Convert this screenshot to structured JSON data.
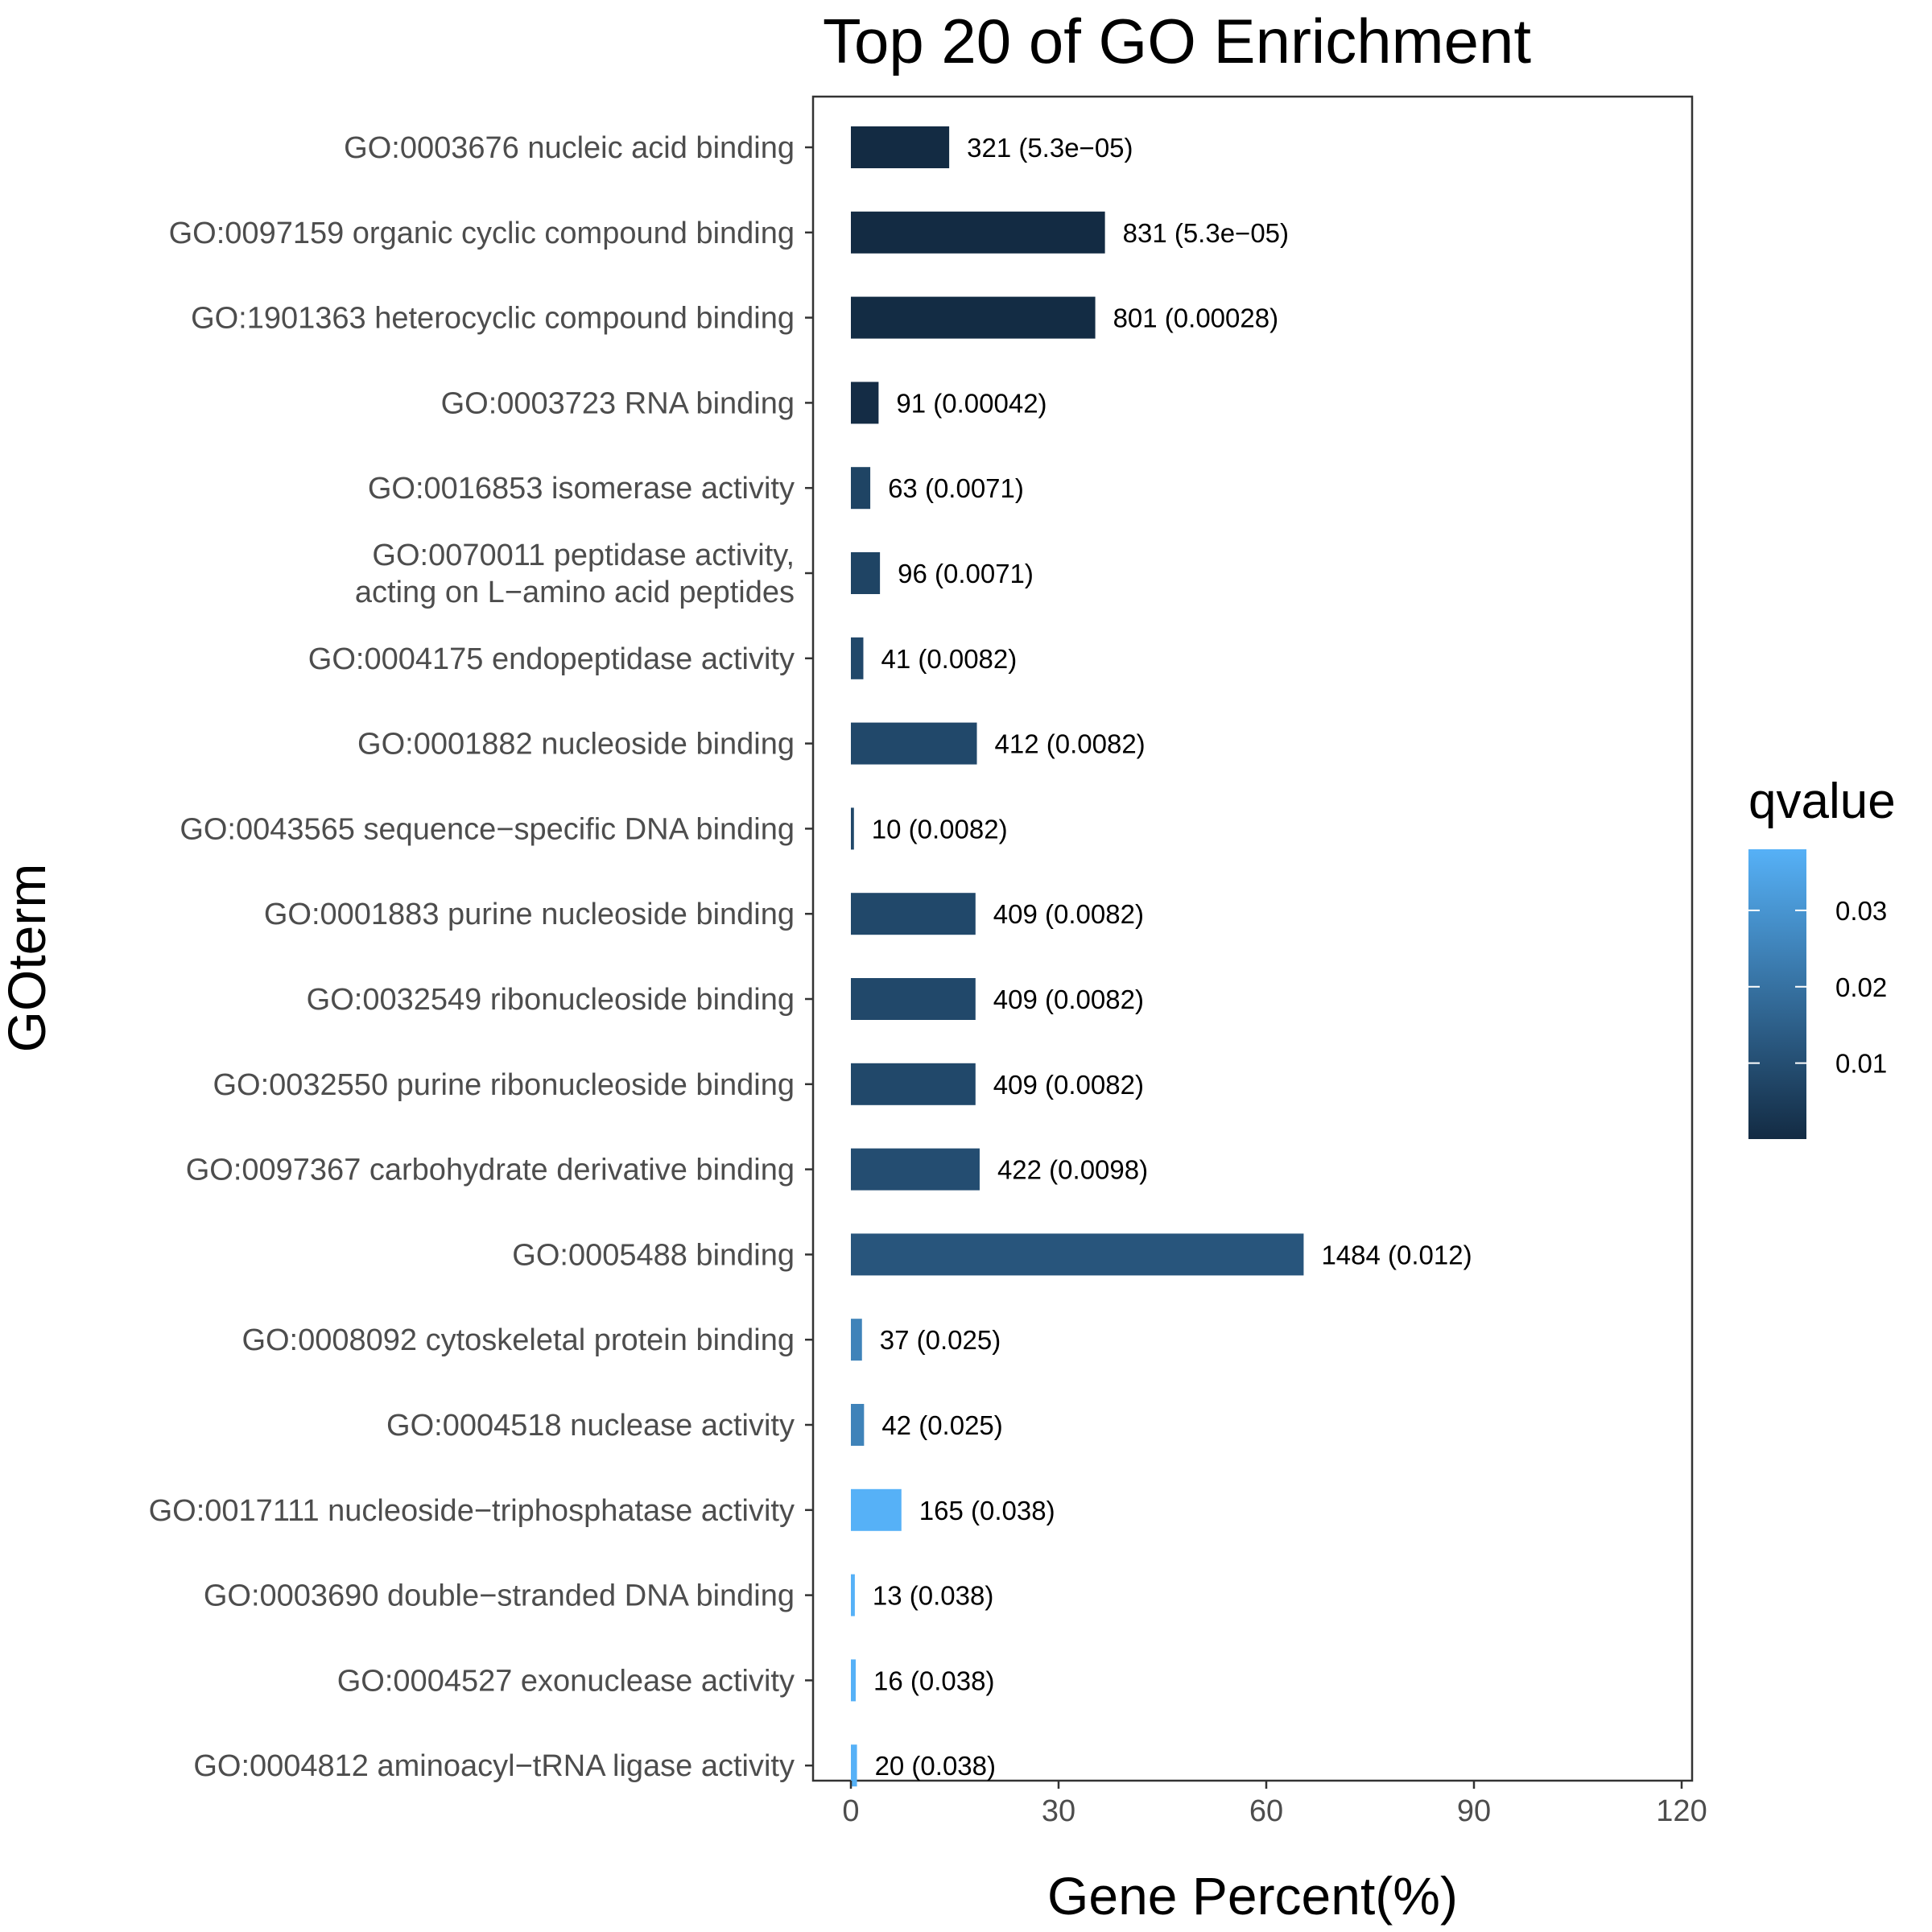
{
  "chart_data": {
    "type": "bar",
    "orientation": "horizontal",
    "title": "Top 20 of GO Enrichment",
    "xlabel": "Gene Percent(%)",
    "ylabel": "GOterm",
    "xlim": [
      -5,
      120
    ],
    "x_ticks": [
      0,
      30,
      60,
      90,
      120
    ],
    "x_tick_labels": [
      "0",
      "30",
      "60",
      "90",
      "120"
    ],
    "grid": false,
    "legend": {
      "title": "qvalue",
      "placement": "right",
      "min": 5.3e-05,
      "max": 0.038,
      "ticks": [
        0.01,
        0.02,
        0.03
      ],
      "tick_labels": [
        "0.01",
        "0.02",
        "0.03"
      ],
      "low_color": "#132B43",
      "high_color": "#56B1F7"
    },
    "categories": [
      {
        "lines": [
          "GO:0003676 nucleic acid binding"
        ],
        "value": 14.2,
        "qvalue": 5.3e-05,
        "label": "321 (5.3e−05)"
      },
      {
        "lines": [
          "GO:0097159 organic cyclic compound binding"
        ],
        "value": 36.7,
        "qvalue": 5.3e-05,
        "label": "831 (5.3e−05)"
      },
      {
        "lines": [
          "GO:1901363 heterocyclic compound binding"
        ],
        "value": 35.3,
        "qvalue": 0.00028,
        "label": "801 (0.00028)"
      },
      {
        "lines": [
          "GO:0003723 RNA binding"
        ],
        "value": 4.0,
        "qvalue": 0.00042,
        "label": "91 (0.00042)"
      },
      {
        "lines": [
          "GO:0016853 isomerase activity"
        ],
        "value": 2.8,
        "qvalue": 0.0071,
        "label": "63 (0.0071)"
      },
      {
        "lines": [
          "GO:0070011 peptidase activity,",
          "acting on L−amino acid peptides"
        ],
        "value": 4.2,
        "qvalue": 0.0071,
        "label": "96 (0.0071)"
      },
      {
        "lines": [
          "GO:0004175 endopeptidase activity"
        ],
        "value": 1.8,
        "qvalue": 0.0082,
        "label": "41 (0.0082)"
      },
      {
        "lines": [
          "GO:0001882 nucleoside binding"
        ],
        "value": 18.2,
        "qvalue": 0.0082,
        "label": "412 (0.0082)"
      },
      {
        "lines": [
          "GO:0043565 sequence−specific DNA binding"
        ],
        "value": 0.44,
        "qvalue": 0.0082,
        "label": "10 (0.0082)"
      },
      {
        "lines": [
          "GO:0001883 purine nucleoside binding"
        ],
        "value": 18.0,
        "qvalue": 0.0082,
        "label": "409 (0.0082)"
      },
      {
        "lines": [
          "GO:0032549 ribonucleoside binding"
        ],
        "value": 18.0,
        "qvalue": 0.0082,
        "label": "409 (0.0082)"
      },
      {
        "lines": [
          "GO:0032550 purine ribonucleoside binding"
        ],
        "value": 18.0,
        "qvalue": 0.0082,
        "label": "409 (0.0082)"
      },
      {
        "lines": [
          "GO:0097367 carbohydrate derivative binding"
        ],
        "value": 18.6,
        "qvalue": 0.0098,
        "label": "422 (0.0098)"
      },
      {
        "lines": [
          "GO:0005488 binding"
        ],
        "value": 65.4,
        "qvalue": 0.012,
        "label": "1484 (0.012)"
      },
      {
        "lines": [
          "GO:0008092 cytoskeletal protein binding"
        ],
        "value": 1.6,
        "qvalue": 0.025,
        "label": "37 (0.025)"
      },
      {
        "lines": [
          "GO:0004518 nuclease activity"
        ],
        "value": 1.9,
        "qvalue": 0.025,
        "label": "42 (0.025)"
      },
      {
        "lines": [
          "GO:0017111 nucleoside−triphosphatase activity"
        ],
        "value": 7.3,
        "qvalue": 0.038,
        "label": "165 (0.038)"
      },
      {
        "lines": [
          "GO:0003690 double−stranded DNA binding"
        ],
        "value": 0.57,
        "qvalue": 0.038,
        "label": "13 (0.038)"
      },
      {
        "lines": [
          "GO:0004527 exonuclease activity"
        ],
        "value": 0.7,
        "qvalue": 0.038,
        "label": "16 (0.038)"
      },
      {
        "lines": [
          "GO:0004812 aminoacyl−tRNA ligase activity"
        ],
        "value": 0.88,
        "qvalue": 0.038,
        "label": "20 (0.038)"
      }
    ]
  }
}
